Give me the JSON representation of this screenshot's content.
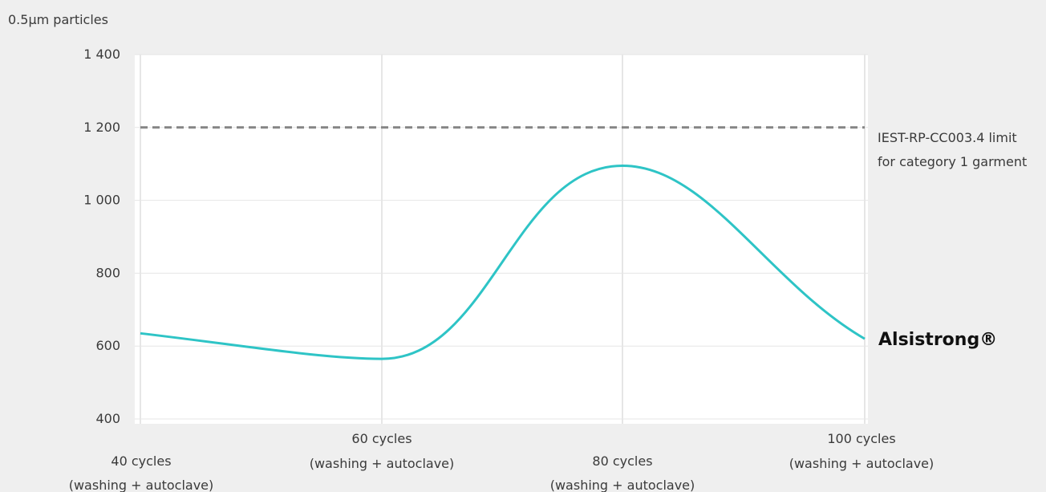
{
  "chart_data": {
    "type": "line",
    "ylabel": "0.5µm particles",
    "ylim": [
      400,
      1400
    ],
    "yticks": [
      {
        "value": 1400,
        "label": "1 400"
      },
      {
        "value": 1200,
        "label": "1 200"
      },
      {
        "value": 1000,
        "label": "1 000"
      },
      {
        "value": 800,
        "label": "800"
      },
      {
        "value": 600,
        "label": "600"
      },
      {
        "value": 400,
        "label": "400"
      }
    ],
    "categories": [
      {
        "line1": "40 cycles",
        "line2": "(washing + autoclave)"
      },
      {
        "line1": "60 cycles",
        "line2": "(washing + autoclave)"
      },
      {
        "line1": "80 cycles",
        "line2": "(washing + autoclave)"
      },
      {
        "line1": "100 cycles",
        "line2": "(washing + autoclave)"
      }
    ],
    "series": [
      {
        "name": "Alsistrong®",
        "color": "#2ec4c6",
        "values": [
          635,
          565,
          1095,
          620
        ]
      }
    ],
    "reference_line": {
      "value": 1200,
      "label_lines": [
        "IEST-RP-CC003.4 limit",
        "for category 1 garment"
      ],
      "color": "#858585",
      "style": "dashed"
    },
    "grid": true,
    "legend": "inline-right"
  }
}
